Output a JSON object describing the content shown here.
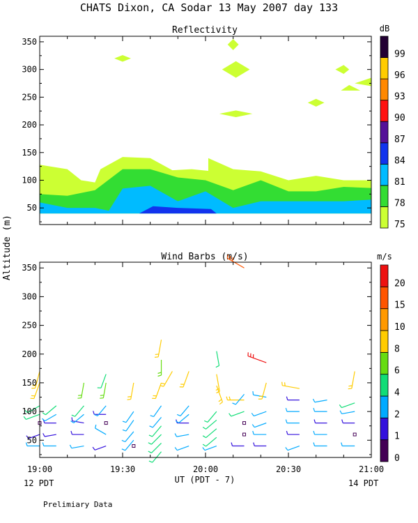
{
  "title": "CHATS Dixon, CA  Sodar  13 May 2007  day 133",
  "ylabel": "Altitude (m)",
  "xlabel": "UT  (PDT - 7)",
  "left_note": "12 PDT",
  "right_note": "14 PDT",
  "footer": "Prelimiary Data",
  "x_ticks": [
    "19:00",
    "19:30",
    "20:00",
    "20:30",
    "21:00"
  ],
  "chart_data": [
    {
      "type": "area",
      "title": "Reflectivity",
      "ylim": [
        20,
        360
      ],
      "yticks": [
        50,
        100,
        150,
        200,
        250,
        300,
        350
      ],
      "xlim": [
        "19:00",
        "21:00"
      ],
      "colorbar": {
        "unit": "dB",
        "labels": [
          "75",
          "78",
          "81",
          "84",
          "87",
          "90",
          "93",
          "96",
          "99"
        ],
        "colors": [
          "#ccff33",
          "#33dd33",
          "#00bbff",
          "#1133ee",
          "#551199",
          "#ff1111",
          "#ff8800",
          "#ffcc00",
          "#220033"
        ]
      },
      "layers": [
        {
          "level": "75",
          "color": "#ccff33",
          "x": [
            "19:00",
            "19:10",
            "19:15",
            "19:20",
            "19:22",
            "19:30",
            "19:40",
            "19:48",
            "19:55",
            "20:01",
            "20:01",
            "20:10",
            "20:20",
            "20:30",
            "20:40",
            "20:50",
            "21:00"
          ],
          "top": [
            128,
            120,
            100,
            96,
            120,
            142,
            140,
            118,
            120,
            117,
            140,
            120,
            116,
            100,
            108,
            100,
            100
          ]
        },
        {
          "level": "78",
          "color": "#33dd33",
          "x": [
            "19:00",
            "19:10",
            "19:20",
            "19:30",
            "19:40",
            "19:50",
            "20:00",
            "20:10",
            "20:20",
            "20:30",
            "20:40",
            "20:50",
            "21:00"
          ],
          "top": [
            75,
            72,
            82,
            120,
            120,
            105,
            100,
            82,
            100,
            80,
            80,
            88,
            86
          ]
        },
        {
          "level": "81",
          "color": "#00bbff",
          "x": [
            "19:00",
            "19:10",
            "19:20",
            "19:25",
            "19:30",
            "19:40",
            "19:50",
            "20:00",
            "20:10",
            "20:20",
            "20:30",
            "20:40",
            "20:50",
            "21:00"
          ],
          "top": [
            60,
            50,
            50,
            45,
            85,
            90,
            62,
            80,
            50,
            62,
            62,
            62,
            62,
            65
          ]
        }
      ],
      "patches": [
        {
          "level": "84",
          "color": "#1133ee",
          "x": [
            "19:36",
            "19:41",
            "19:50",
            "20:02",
            "20:04"
          ],
          "top": [
            40,
            53,
            50,
            48,
            40
          ]
        },
        {
          "level": "75",
          "color": "#ccff33",
          "x": [
            "19:27",
            "19:30",
            "19:33"
          ],
          "alt": [
            320,
            326,
            320
          ],
          "alt2": [
            320,
            314,
            320
          ]
        },
        {
          "level": "75",
          "color": "#ccff33",
          "x": [
            "20:08",
            "20:10",
            "20:12"
          ],
          "alt": [
            345,
            355,
            345
          ],
          "alt2": [
            345,
            335,
            345
          ]
        },
        {
          "level": "75",
          "color": "#ccff33",
          "x": [
            "20:06",
            "20:11",
            "20:16"
          ],
          "alt": [
            300,
            315,
            300
          ],
          "alt2": [
            300,
            285,
            300
          ]
        },
        {
          "level": "75",
          "color": "#ccff33",
          "x": [
            "20:05",
            "20:11",
            "20:17"
          ],
          "alt": [
            220,
            226,
            220
          ],
          "alt2": [
            220,
            214,
            220
          ]
        },
        {
          "level": "75",
          "color": "#ccff33",
          "x": [
            "20:37",
            "20:40",
            "20:43"
          ],
          "alt": [
            240,
            247,
            240
          ],
          "alt2": [
            240,
            233,
            240
          ]
        },
        {
          "level": "75",
          "color": "#ccff33",
          "x": [
            "20:47",
            "20:50",
            "20:52"
          ],
          "alt": [
            300,
            308,
            300
          ],
          "alt2": [
            300,
            292,
            300
          ]
        },
        {
          "level": "75",
          "color": "#ccff33",
          "x": [
            "20:49",
            "20:52",
            "20:56"
          ],
          "alt": [
            262,
            272,
            262
          ],
          "alt2": [
            262,
            262,
            262
          ]
        },
        {
          "level": "75",
          "color": "#ccff33",
          "x": [
            "20:54",
            "21:00",
            "21:00"
          ],
          "alt": [
            275,
            285,
            270
          ],
          "alt2": [
            275,
            270,
            270
          ]
        }
      ]
    },
    {
      "type": "scatter",
      "title": "Wind Barbs (m/s)",
      "ylim": [
        20,
        360
      ],
      "yticks": [
        50,
        100,
        150,
        200,
        250,
        300,
        350
      ],
      "xlim": [
        "19:00",
        "21:00"
      ],
      "colorbar": {
        "unit": "m/s",
        "labels": [
          "0",
          "1",
          "2",
          "4",
          "6",
          "8",
          "10",
          "15",
          "20"
        ],
        "colors": [
          "#440055",
          "#3311dd",
          "#00aaff",
          "#11dd77",
          "#66dd11",
          "#ffcc00",
          "#ff9900",
          "#ff5500",
          "#ee1111"
        ]
      },
      "barbs": [
        {
          "time": "19:00",
          "alt": 40,
          "speed": 2,
          "dir": 270
        },
        {
          "time": "19:00",
          "alt": 60,
          "speed": 1,
          "dir": 250
        },
        {
          "time": "19:00",
          "alt": 80,
          "speed": 0,
          "dir": 0
        },
        {
          "time": "19:00",
          "alt": 95,
          "speed": 5,
          "dir": 250
        },
        {
          "time": "19:00",
          "alt": 110,
          "speed": 4,
          "dir": 240
        },
        {
          "time": "19:00",
          "alt": 150,
          "speed": 8,
          "dir": 200
        },
        {
          "time": "19:00",
          "alt": 170,
          "speed": 9,
          "dir": 195
        },
        {
          "time": "19:06",
          "alt": 40,
          "speed": 2,
          "dir": 270
        },
        {
          "time": "19:06",
          "alt": 60,
          "speed": 1,
          "dir": 260
        },
        {
          "time": "19:06",
          "alt": 80,
          "speed": 1,
          "dir": 270
        },
        {
          "time": "19:06",
          "alt": 95,
          "speed": 3,
          "dir": 240
        },
        {
          "time": "19:06",
          "alt": 110,
          "speed": 4,
          "dir": 230
        },
        {
          "time": "19:16",
          "alt": 40,
          "speed": 2,
          "dir": 260
        },
        {
          "time": "19:16",
          "alt": 60,
          "speed": 1,
          "dir": 270
        },
        {
          "time": "19:16",
          "alt": 80,
          "speed": 1,
          "dir": 280
        },
        {
          "time": "19:16",
          "alt": 95,
          "speed": 3,
          "dir": 230
        },
        {
          "time": "19:16",
          "alt": 110,
          "speed": 4,
          "dir": 220
        },
        {
          "time": "19:16",
          "alt": 150,
          "speed": 6,
          "dir": 190
        },
        {
          "time": "19:24",
          "alt": 40,
          "speed": 1,
          "dir": 250
        },
        {
          "time": "19:24",
          "alt": 60,
          "speed": 2,
          "dir": 300
        },
        {
          "time": "19:24",
          "alt": 80,
          "speed": 0,
          "dir": 0
        },
        {
          "time": "19:24",
          "alt": 95,
          "speed": 1,
          "dir": 270
        },
        {
          "time": "19:24",
          "alt": 110,
          "speed": 3,
          "dir": 220
        },
        {
          "time": "19:24",
          "alt": 150,
          "speed": 6,
          "dir": 190
        },
        {
          "time": "19:24",
          "alt": 165,
          "speed": 5,
          "dir": 200
        },
        {
          "time": "19:34",
          "alt": 40,
          "speed": 0,
          "dir": 0
        },
        {
          "time": "19:34",
          "alt": 50,
          "speed": 3,
          "dir": 220
        },
        {
          "time": "19:34",
          "alt": 65,
          "speed": 3,
          "dir": 220
        },
        {
          "time": "19:34",
          "alt": 85,
          "speed": 3,
          "dir": 215
        },
        {
          "time": "19:34",
          "alt": 100,
          "speed": 3,
          "dir": 215
        },
        {
          "time": "19:34",
          "alt": 150,
          "speed": 8,
          "dir": 190
        },
        {
          "time": "19:44",
          "alt": 30,
          "speed": 4,
          "dir": 220
        },
        {
          "time": "19:44",
          "alt": 45,
          "speed": 4,
          "dir": 225
        },
        {
          "time": "19:44",
          "alt": 60,
          "speed": 4,
          "dir": 225
        },
        {
          "time": "19:44",
          "alt": 75,
          "speed": 4,
          "dir": 220
        },
        {
          "time": "19:44",
          "alt": 90,
          "speed": 3,
          "dir": 220
        },
        {
          "time": "19:44",
          "alt": 110,
          "speed": 3,
          "dir": 215
        },
        {
          "time": "19:44",
          "alt": 150,
          "speed": 8,
          "dir": 200
        },
        {
          "time": "19:44",
          "alt": 190,
          "speed": 6,
          "dir": 180
        },
        {
          "time": "19:44",
          "alt": 225,
          "speed": 9,
          "dir": 190
        },
        {
          "time": "19:48",
          "alt": 170,
          "speed": 9,
          "dir": 210
        },
        {
          "time": "19:54",
          "alt": 40,
          "speed": 2,
          "dir": 250
        },
        {
          "time": "19:54",
          "alt": 60,
          "speed": 2,
          "dir": 260
        },
        {
          "time": "19:54",
          "alt": 80,
          "speed": 1,
          "dir": 270
        },
        {
          "time": "19:54",
          "alt": 95,
          "speed": 3,
          "dir": 230
        },
        {
          "time": "19:54",
          "alt": 110,
          "speed": 3,
          "dir": 220
        },
        {
          "time": "19:54",
          "alt": 170,
          "speed": 8,
          "dir": 200
        },
        {
          "time": "20:04",
          "alt": 40,
          "speed": 2,
          "dir": 250
        },
        {
          "time": "20:04",
          "alt": 55,
          "speed": 4,
          "dir": 230
        },
        {
          "time": "20:04",
          "alt": 70,
          "speed": 4,
          "dir": 230
        },
        {
          "time": "20:04",
          "alt": 85,
          "speed": 4,
          "dir": 230
        },
        {
          "time": "20:04",
          "alt": 100,
          "speed": 4,
          "dir": 220
        },
        {
          "time": "20:04",
          "alt": 145,
          "speed": 9,
          "dir": 160
        },
        {
          "time": "20:04",
          "alt": 165,
          "speed": 9,
          "dir": 170
        },
        {
          "time": "20:04",
          "alt": 205,
          "speed": 5,
          "dir": 170
        },
        {
          "time": "20:14",
          "alt": 40,
          "speed": 1,
          "dir": 270
        },
        {
          "time": "20:14",
          "alt": 60,
          "speed": 0,
          "dir": 0
        },
        {
          "time": "20:14",
          "alt": 80,
          "speed": 0,
          "dir": 0
        },
        {
          "time": "20:14",
          "alt": 100,
          "speed": 4,
          "dir": 250
        },
        {
          "time": "20:14",
          "alt": 120,
          "speed": 8,
          "dir": 270
        },
        {
          "time": "20:14",
          "alt": 130,
          "speed": 3,
          "dir": 220
        },
        {
          "time": "20:14",
          "alt": 350,
          "speed": 15,
          "dir": 300
        },
        {
          "time": "20:22",
          "alt": 40,
          "speed": 1,
          "dir": 270
        },
        {
          "time": "20:22",
          "alt": 60,
          "speed": 2,
          "dir": 270
        },
        {
          "time": "20:22",
          "alt": 80,
          "speed": 2,
          "dir": 250
        },
        {
          "time": "20:22",
          "alt": 100,
          "speed": 3,
          "dir": 250
        },
        {
          "time": "20:22",
          "alt": 125,
          "speed": 3,
          "dir": 280
        },
        {
          "time": "20:22",
          "alt": 150,
          "speed": 8,
          "dir": 195
        },
        {
          "time": "20:22",
          "alt": 185,
          "speed": 20,
          "dir": 290
        },
        {
          "time": "20:34",
          "alt": 40,
          "speed": 2,
          "dir": 250
        },
        {
          "time": "20:34",
          "alt": 60,
          "speed": 1,
          "dir": 270
        },
        {
          "time": "20:34",
          "alt": 80,
          "speed": 2,
          "dir": 270
        },
        {
          "time": "20:34",
          "alt": 100,
          "speed": 2,
          "dir": 270
        },
        {
          "time": "20:34",
          "alt": 120,
          "speed": 1,
          "dir": 270
        },
        {
          "time": "20:34",
          "alt": 140,
          "speed": 9,
          "dir": 280
        },
        {
          "time": "20:44",
          "alt": 40,
          "speed": 2,
          "dir": 270
        },
        {
          "time": "20:44",
          "alt": 60,
          "speed": 2,
          "dir": 270
        },
        {
          "time": "20:44",
          "alt": 80,
          "speed": 1,
          "dir": 270
        },
        {
          "time": "20:44",
          "alt": 100,
          "speed": 2,
          "dir": 270
        },
        {
          "time": "20:44",
          "alt": 120,
          "speed": 2,
          "dir": 260
        },
        {
          "time": "20:54",
          "alt": 40,
          "speed": 2,
          "dir": 270
        },
        {
          "time": "20:54",
          "alt": 60,
          "speed": 0,
          "dir": 0
        },
        {
          "time": "20:54",
          "alt": 80,
          "speed": 1,
          "dir": 270
        },
        {
          "time": "20:54",
          "alt": 100,
          "speed": 3,
          "dir": 260
        },
        {
          "time": "20:54",
          "alt": 115,
          "speed": 4,
          "dir": 250
        },
        {
          "time": "20:54",
          "alt": 170,
          "speed": 9,
          "dir": 190
        }
      ]
    }
  ]
}
